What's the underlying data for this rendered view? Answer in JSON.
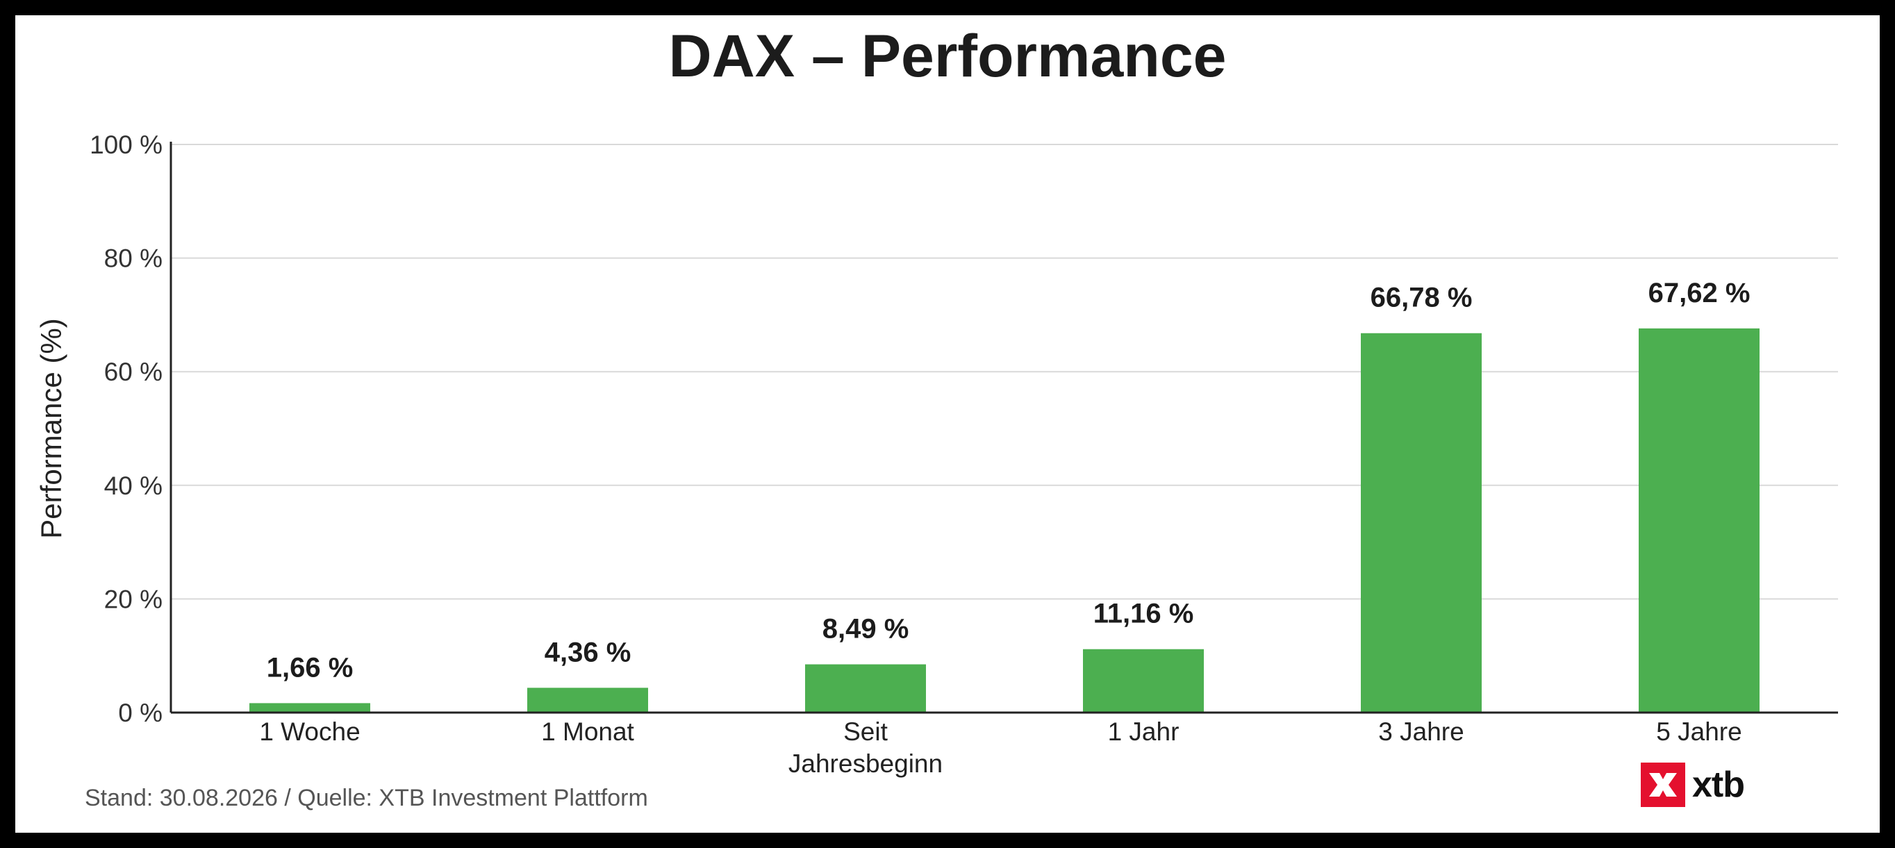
{
  "chart_data": {
    "type": "bar",
    "title": "DAX – Performance",
    "categories": [
      "1 Woche",
      "1 Monat",
      "Seit\nJahresbeginn",
      "1 Jahr",
      "3 Jahre",
      "5 Jahre"
    ],
    "values": [
      1.66,
      4.36,
      8.49,
      11.16,
      66.78,
      67.62
    ],
    "data_labels": [
      "1,66 %",
      "4,36 %",
      "8,49 %",
      "11,16 %",
      "66,78 %",
      "67,62 %"
    ],
    "xlabel": "",
    "ylabel": "Performance (%)",
    "ylim": [
      0,
      100
    ],
    "yticks": [
      0,
      20,
      40,
      60,
      80,
      100
    ],
    "ytick_labels": [
      "0 %",
      "20 %",
      "40 %",
      "60 %",
      "80 %",
      "100 %"
    ],
    "grid": true,
    "legend": "none",
    "bar_color": "#4caf50"
  },
  "footer": {
    "source_note": "Stand: 30.08.2026 / Quelle: XTB Investment Plattform"
  },
  "brand": {
    "logo_text": "xtb",
    "logo_color": "#e4102e",
    "logo_icon": "xtb-x-icon"
  }
}
